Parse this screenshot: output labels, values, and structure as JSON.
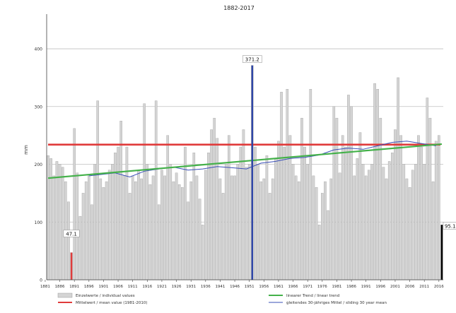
{
  "chart_data": {
    "type": "bar",
    "title": "",
    "subtitle": "1882-2017",
    "ylabel": "mm",
    "xlabel": "",
    "ylim": [
      0,
      460
    ],
    "yticks": [
      0,
      100,
      200,
      300,
      400
    ],
    "x_tick_labels": [
      "1881",
      "1886",
      "1891",
      "1896",
      "1901",
      "1906",
      "1911",
      "1916",
      "1921",
      "1926",
      "1931",
      "1936",
      "1941",
      "1946",
      "1951",
      "1956",
      "1961",
      "1966",
      "1971",
      "1976",
      "1981",
      "1986",
      "1991",
      "1996",
      "2001",
      "2006",
      "2011",
      "2016"
    ],
    "grid": true,
    "years": [
      1882,
      1883,
      1884,
      1885,
      1886,
      1887,
      1888,
      1889,
      1890,
      1891,
      1892,
      1893,
      1894,
      1895,
      1896,
      1897,
      1898,
      1899,
      1900,
      1901,
      1902,
      1903,
      1904,
      1905,
      1906,
      1907,
      1908,
      1909,
      1910,
      1911,
      1912,
      1913,
      1914,
      1915,
      1916,
      1917,
      1918,
      1919,
      1920,
      1921,
      1922,
      1923,
      1924,
      1925,
      1926,
      1927,
      1928,
      1929,
      1930,
      1931,
      1932,
      1933,
      1934,
      1935,
      1936,
      1937,
      1938,
      1939,
      1940,
      1941,
      1942,
      1943,
      1944,
      1945,
      1946,
      1947,
      1948,
      1949,
      1950,
      1951,
      1952,
      1953,
      1954,
      1955,
      1956,
      1957,
      1958,
      1959,
      1960,
      1961,
      1962,
      1963,
      1964,
      1965,
      1966,
      1967,
      1968,
      1969,
      1970,
      1971,
      1972,
      1973,
      1974,
      1975,
      1976,
      1977,
      1978,
      1979,
      1980,
      1981,
      1982,
      1983,
      1984,
      1985,
      1986,
      1987,
      1988,
      1989,
      1990,
      1991,
      1992,
      1993,
      1994,
      1995,
      1996,
      1997,
      1998,
      1999,
      2000,
      2001,
      2002,
      2003,
      2004,
      2005,
      2006,
      2007,
      2008,
      2009,
      2010,
      2011,
      2012,
      2013,
      2014,
      2015,
      2016,
      2017
    ],
    "series": [
      {
        "name": "Einzelwerte / individual values",
        "color": "#d4d4d4",
        "values": [
          215,
          210,
          180,
          205,
          200,
          195,
          170,
          135,
          47.1,
          262,
          185,
          110,
          150,
          170,
          180,
          130,
          200,
          310,
          175,
          160,
          170,
          190,
          200,
          220,
          230,
          275,
          180,
          230,
          150,
          180,
          170,
          190,
          175,
          305,
          200,
          165,
          180,
          310,
          130,
          190,
          180,
          250,
          200,
          170,
          185,
          165,
          160,
          230,
          135,
          170,
          220,
          180,
          140,
          95,
          190,
          220,
          260,
          280,
          245,
          175,
          150,
          200,
          250,
          180,
          180,
          200,
          230,
          260,
          195,
          200,
          371.2,
          230,
          200,
          170,
          175,
          215,
          150,
          175,
          210,
          240,
          325,
          230,
          330,
          250,
          200,
          180,
          170,
          280,
          230,
          200,
          330,
          180,
          160,
          95,
          150,
          170,
          120,
          175,
          300,
          280,
          185,
          250,
          230,
          320,
          300,
          180,
          210,
          255,
          200,
          180,
          190,
          200,
          340,
          330,
          280,
          195,
          175,
          205,
          220,
          260,
          350,
          250,
          200,
          175,
          160,
          190,
          200,
          250,
          230,
          200,
          315,
          280,
          170,
          240,
          250,
          95.1
        ],
        "annotations": [
          {
            "year": 1890,
            "value": 47.1,
            "label": "47.1"
          },
          {
            "year": 1952,
            "value": 371.2,
            "label": "371.2"
          },
          {
            "year": 2017,
            "value": 95.1,
            "label": "95.1"
          }
        ]
      },
      {
        "name": "Mittelwert / mean value (1981-2010)",
        "color": "#e03b3b",
        "value": 234
      },
      {
        "name": "linearer Trend / linear trend",
        "color": "#44b14a",
        "start": [
          1882,
          176
        ],
        "end": [
          2017,
          235
        ]
      },
      {
        "name": "gleitendes 30-jähriges Mittel / sliding 30 year mean",
        "color": "#3a4fb7",
        "points": [
          [
            1896,
            180
          ],
          [
            1905,
            185
          ],
          [
            1910,
            178
          ],
          [
            1915,
            188
          ],
          [
            1920,
            192
          ],
          [
            1925,
            195
          ],
          [
            1930,
            190
          ],
          [
            1935,
            192
          ],
          [
            1940,
            196
          ],
          [
            1945,
            194
          ],
          [
            1950,
            192
          ],
          [
            1955,
            202
          ],
          [
            1960,
            205
          ],
          [
            1965,
            210
          ],
          [
            1970,
            212
          ],
          [
            1975,
            216
          ],
          [
            1980,
            225
          ],
          [
            1985,
            228
          ],
          [
            1990,
            226
          ],
          [
            1995,
            232
          ],
          [
            2000,
            238
          ],
          [
            2005,
            240
          ],
          [
            2010,
            236
          ],
          [
            2015,
            232
          ]
        ]
      }
    ],
    "legend": {
      "placement": "bottom",
      "entries": [
        {
          "label": "Einzelwerte / individual values",
          "kind": "bar",
          "color": "#d4d4d4"
        },
        {
          "label": "linearer Trend / linear trend",
          "kind": "line",
          "color": "#44b14a"
        },
        {
          "label": "Mittelwert / mean value (1981-2010)",
          "kind": "line",
          "color": "#e03b3b"
        },
        {
          "label": "gleitendes 30-jähriges Mittel / sliding 30 year mean",
          "kind": "line",
          "color": "#3a4fb7"
        }
      ]
    }
  }
}
